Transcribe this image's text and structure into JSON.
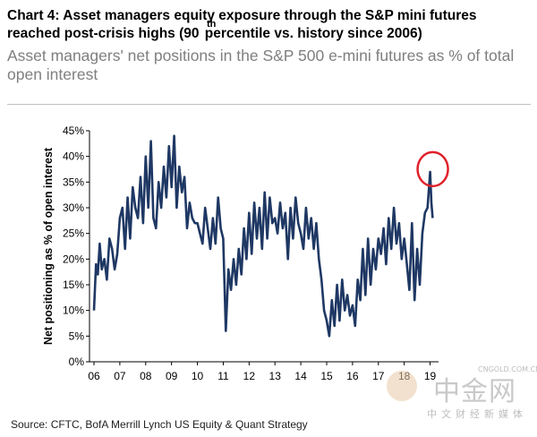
{
  "title_line1": "Chart 4: Asset managers equity exposure through the S&P mini futures",
  "title_line2": "reached post-crisis highs (90",
  "title_sup": "th",
  "title_line2_rest": " percentile vs. history since 2006)",
  "subtitle": "Asset managers' net positions in the S&P 500 e-mini futures as % of total open interest",
  "source": "Source: CFTC, BofA Merrill Lynch US Equity & Quant Strategy",
  "watermark": {
    "brand": "中金网",
    "url": "CNGOLD.COM.CN",
    "sub": "中文财经新媒体"
  },
  "colors": {
    "line": "#1f3864",
    "highlight": "#e0202a",
    "axis": "#000000"
  },
  "chart_data": {
    "type": "line",
    "title": "Chart 4: Asset managers equity exposure through the S&P mini futures reached post-crisis highs (90th percentile vs. history since 2006)",
    "ylabel": "Net positioning as % of open interest",
    "xlabel": "",
    "ylim": [
      0,
      45
    ],
    "xlim": [
      2006,
      2019.5
    ],
    "yticks": [
      "0%",
      "5%",
      "10%",
      "15%",
      "20%",
      "25%",
      "30%",
      "35%",
      "40%",
      "45%"
    ],
    "xticks": [
      "06",
      "07",
      "08",
      "09",
      "10",
      "11",
      "12",
      "13",
      "14",
      "15",
      "16",
      "17",
      "18",
      "19"
    ],
    "grid": false,
    "legend": "none",
    "annotation": "red circle around latest peak (~37%, early 2019)",
    "series": [
      {
        "x": [
          2006.0,
          2006.08,
          2006.15,
          2006.22,
          2006.3,
          2006.4,
          2006.5,
          2006.6,
          2006.7,
          2006.8,
          2006.9,
          2007.0,
          2007.1,
          2007.2,
          2007.3,
          2007.4,
          2007.5,
          2007.6,
          2007.7,
          2007.8,
          2007.9,
          2008.0,
          2008.1,
          2008.2,
          2008.3,
          2008.4,
          2008.5,
          2008.6,
          2008.7,
          2008.8,
          2008.9,
          2009.0,
          2009.1,
          2009.2,
          2009.3,
          2009.4,
          2009.5,
          2009.6,
          2009.7,
          2009.8,
          2009.9,
          2010.0,
          2010.1,
          2010.2,
          2010.3,
          2010.4,
          2010.5,
          2010.6,
          2010.7,
          2010.8,
          2010.9,
          2011.0,
          2011.1,
          2011.2,
          2011.3,
          2011.4,
          2011.5,
          2011.6,
          2011.7,
          2011.8,
          2011.9,
          2012.0,
          2012.1,
          2012.2,
          2012.3,
          2012.4,
          2012.5,
          2012.6,
          2012.7,
          2012.8,
          2012.9,
          2013.0,
          2013.1,
          2013.2,
          2013.3,
          2013.4,
          2013.5,
          2013.6,
          2013.7,
          2013.8,
          2013.9,
          2014.0,
          2014.1,
          2014.2,
          2014.3,
          2014.4,
          2014.5,
          2014.6,
          2014.7,
          2014.8,
          2014.9,
          2015.0,
          2015.1,
          2015.2,
          2015.3,
          2015.4,
          2015.5,
          2015.6,
          2015.7,
          2015.8,
          2015.9,
          2016.0,
          2016.1,
          2016.2,
          2016.3,
          2016.4,
          2016.5,
          2016.6,
          2016.7,
          2016.8,
          2016.9,
          2017.0,
          2017.1,
          2017.2,
          2017.3,
          2017.4,
          2017.5,
          2017.6,
          2017.7,
          2017.8,
          2017.9,
          2018.0,
          2018.1,
          2018.2,
          2018.3,
          2018.4,
          2018.5,
          2018.6,
          2018.7,
          2018.8,
          2018.9,
          2019.0,
          2019.05,
          2019.1
        ],
        "y": [
          10,
          19,
          17,
          23,
          18,
          20,
          16,
          24,
          22,
          18,
          21,
          28,
          30,
          22,
          32,
          24,
          34,
          30,
          28,
          36,
          27,
          40,
          30,
          43,
          28,
          26,
          35,
          30,
          38,
          32,
          42,
          34,
          44,
          30,
          38,
          33,
          36,
          26,
          31,
          28,
          27,
          27,
          25,
          23,
          30,
          26,
          22,
          28,
          23,
          32,
          26,
          24,
          6,
          18,
          14,
          20,
          15,
          22,
          17,
          26,
          20,
          29,
          21,
          31,
          24,
          30,
          22,
          33,
          24,
          32,
          27,
          28,
          25,
          31,
          26,
          29,
          20,
          30,
          24,
          32,
          27,
          25,
          22,
          30,
          24,
          28,
          22,
          27,
          20,
          16,
          10,
          8,
          5,
          12,
          7,
          15,
          8,
          16,
          10,
          13,
          9,
          11,
          7,
          16,
          12,
          22,
          13,
          24,
          15,
          22,
          18,
          24,
          21,
          26,
          19,
          28,
          22,
          30,
          23,
          27,
          20,
          24,
          19,
          14,
          27,
          12,
          22,
          15,
          25,
          29,
          30,
          37,
          31,
          28
        ]
      }
    ]
  }
}
